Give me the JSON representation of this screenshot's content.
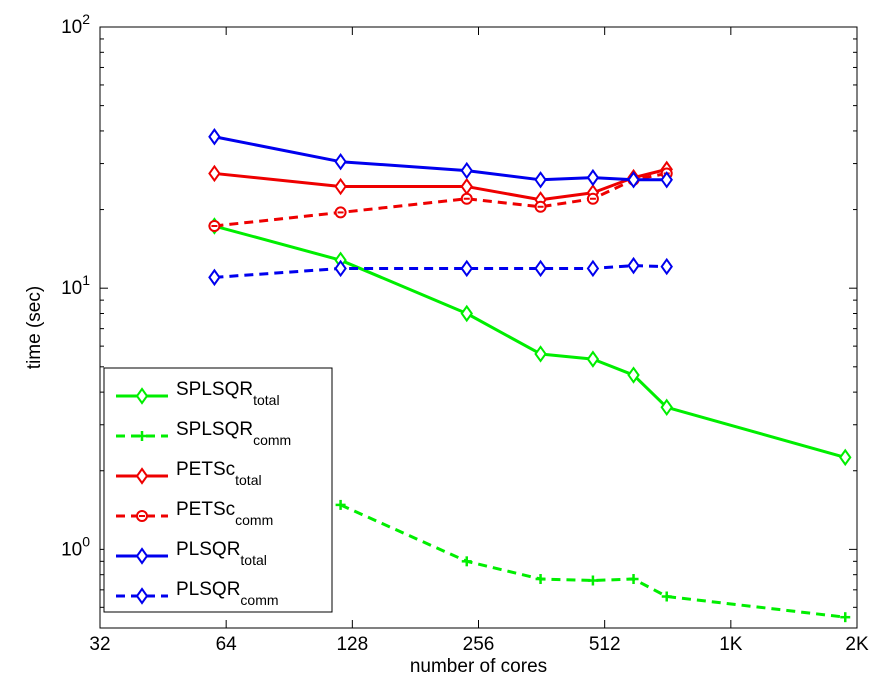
{
  "chart_data": {
    "type": "line",
    "title": "",
    "xlabel": "number of cores",
    "ylabel": "time (sec)",
    "xscale": "log2",
    "yscale": "log10",
    "xlim": [
      32,
      2048
    ],
    "ylim": [
      0.5,
      100
    ],
    "grid": false,
    "legend_position": "bottom-left",
    "x_ticks": [
      {
        "value": 32,
        "label": "32"
      },
      {
        "value": 64,
        "label": "64"
      },
      {
        "value": 128,
        "label": "128"
      },
      {
        "value": 256,
        "label": "256"
      },
      {
        "value": 512,
        "label": "512"
      },
      {
        "value": 1024,
        "label": "1K"
      },
      {
        "value": 2048,
        "label": "2K"
      }
    ],
    "y_ticks": [
      {
        "value": 1,
        "base": "10",
        "exp": "0"
      },
      {
        "value": 10,
        "base": "10",
        "exp": "1"
      },
      {
        "value": 100,
        "base": "10",
        "exp": "2"
      }
    ],
    "series": [
      {
        "name": "SPLSQR",
        "subscript": "total",
        "color": "#00ee00",
        "dash": "solid",
        "marker": "diamond",
        "x": [
          60,
          120,
          240,
          360,
          480,
          600,
          720,
          1920
        ],
        "y": [
          17.3,
          12.8,
          8.0,
          5.6,
          5.35,
          4.65,
          3.5,
          2.25
        ]
      },
      {
        "name": "SPLSQR",
        "subscript": "comm",
        "color": "#00ee00",
        "dash": "dashed",
        "marker": "plus",
        "x": [
          120,
          240,
          360,
          480,
          600,
          720,
          1920
        ],
        "y": [
          1.48,
          0.9,
          0.77,
          0.76,
          0.77,
          0.66,
          0.55
        ]
      },
      {
        "name": "PETSc",
        "subscript": "total",
        "color": "#ee0000",
        "dash": "solid",
        "marker": "diamond",
        "x": [
          60,
          120,
          240,
          360,
          480,
          600,
          720
        ],
        "y": [
          27.5,
          24.5,
          24.5,
          21.8,
          23.2,
          26.5,
          28.5
        ]
      },
      {
        "name": "PETSc",
        "subscript": "comm",
        "color": "#ee0000",
        "dash": "dashed",
        "marker": "circle-minus",
        "x": [
          60,
          120,
          240,
          360,
          480,
          600,
          720
        ],
        "y": [
          17.3,
          19.5,
          22.0,
          20.5,
          22.0,
          26.0,
          27.5
        ]
      },
      {
        "name": "PLSQR",
        "subscript": "total",
        "color": "#0000ee",
        "dash": "solid",
        "marker": "diamond",
        "x": [
          60,
          120,
          240,
          360,
          480,
          600,
          720
        ],
        "y": [
          38.0,
          30.5,
          28.2,
          26.0,
          26.5,
          26.0,
          26.0
        ]
      },
      {
        "name": "PLSQR",
        "subscript": "comm",
        "color": "#0000ee",
        "dash": "dashed",
        "marker": "diamond",
        "x": [
          60,
          120,
          240,
          360,
          480,
          600,
          720
        ],
        "y": [
          11.0,
          11.9,
          11.9,
          11.9,
          11.9,
          12.2,
          12.1
        ]
      }
    ]
  }
}
